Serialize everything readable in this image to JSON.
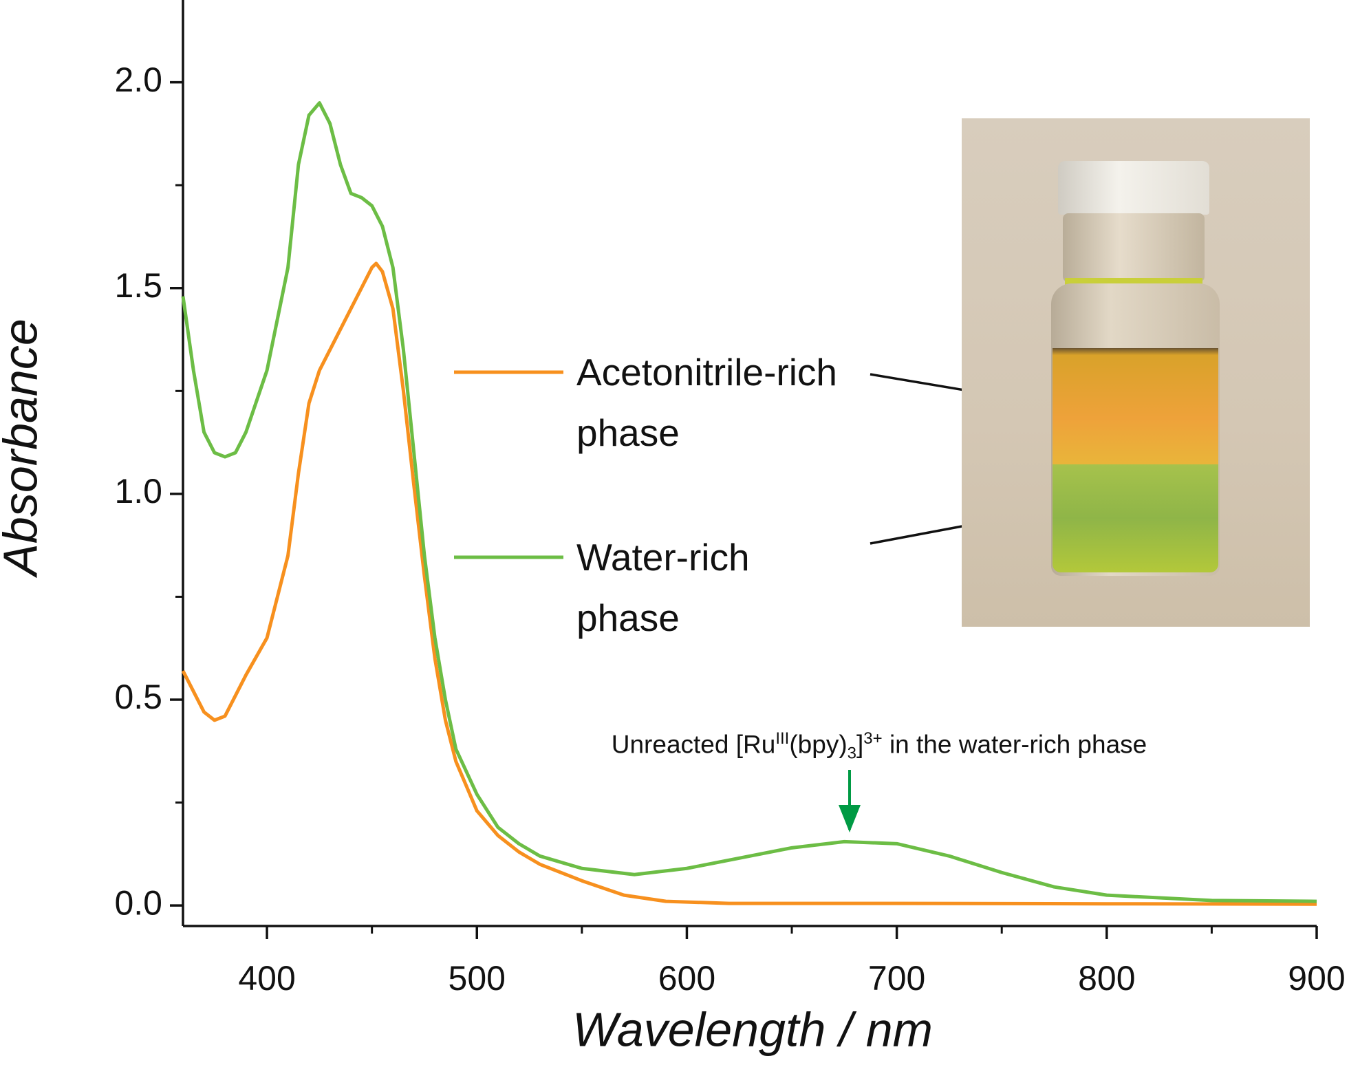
{
  "chart_data": {
    "type": "line",
    "xlabel": "Wavelength / nm",
    "ylabel": "Absorbance",
    "xlim": [
      360,
      900
    ],
    "ylim": [
      -0.05,
      2.2
    ],
    "xticks": [
      400,
      500,
      600,
      700,
      800,
      900
    ],
    "xminorticks": [
      450,
      550,
      650,
      750,
      850
    ],
    "yticks": [
      {
        "value": 0,
        "label": "0.0"
      },
      0.5,
      {
        "value": 1,
        "label": "1.0"
      },
      1.5,
      {
        "value": 2,
        "label": "2.0"
      }
    ],
    "yminorticks": [
      0.25,
      0.75,
      1.25,
      1.75
    ],
    "series": [
      {
        "name": "Acetonitrile-rich phase",
        "color": "#f7901e",
        "x": [
          360,
          370,
          375,
          380,
          390,
          400,
          410,
          415,
          420,
          425,
          430,
          440,
          450,
          452,
          455,
          460,
          465,
          470,
          475,
          480,
          485,
          490,
          500,
          510,
          520,
          530,
          550,
          570,
          590,
          620,
          700,
          800,
          900
        ],
        "values": [
          0.57,
          0.47,
          0.45,
          0.46,
          0.56,
          0.65,
          0.85,
          1.05,
          1.22,
          1.3,
          1.35,
          1.45,
          1.55,
          1.56,
          1.54,
          1.45,
          1.25,
          1.02,
          0.8,
          0.6,
          0.45,
          0.35,
          0.23,
          0.17,
          0.13,
          0.1,
          0.06,
          0.025,
          0.01,
          0.005,
          0.005,
          0.004,
          0.003
        ]
      },
      {
        "name": "Water-rich phase",
        "color": "#6cbd45",
        "x": [
          360,
          365,
          370,
          375,
          380,
          385,
          390,
          400,
          410,
          415,
          420,
          425,
          430,
          435,
          440,
          445,
          450,
          455,
          460,
          465,
          470,
          475,
          480,
          485,
          490,
          500,
          510,
          520,
          530,
          550,
          575,
          600,
          625,
          650,
          675,
          700,
          725,
          750,
          775,
          800,
          850,
          900
        ],
        "values": [
          1.48,
          1.3,
          1.15,
          1.1,
          1.09,
          1.1,
          1.15,
          1.3,
          1.55,
          1.8,
          1.92,
          1.95,
          1.9,
          1.8,
          1.73,
          1.72,
          1.7,
          1.65,
          1.55,
          1.35,
          1.1,
          0.85,
          0.65,
          0.5,
          0.38,
          0.27,
          0.19,
          0.15,
          0.12,
          0.09,
          0.075,
          0.09,
          0.115,
          0.14,
          0.155,
          0.15,
          0.12,
          0.08,
          0.045,
          0.025,
          0.012,
          0.01
        ]
      }
    ],
    "annotation": {
      "parts": [
        {
          "text": "Unreacted [Ru"
        },
        {
          "text": "III",
          "sup": true
        },
        {
          "text": "(bpy)"
        },
        {
          "text": "3",
          "sub": true
        },
        {
          "text": "]"
        },
        {
          "text": "3+",
          "sup": true
        },
        {
          "text": " in the water-rich phase"
        }
      ],
      "color": "#009a44"
    }
  }
}
